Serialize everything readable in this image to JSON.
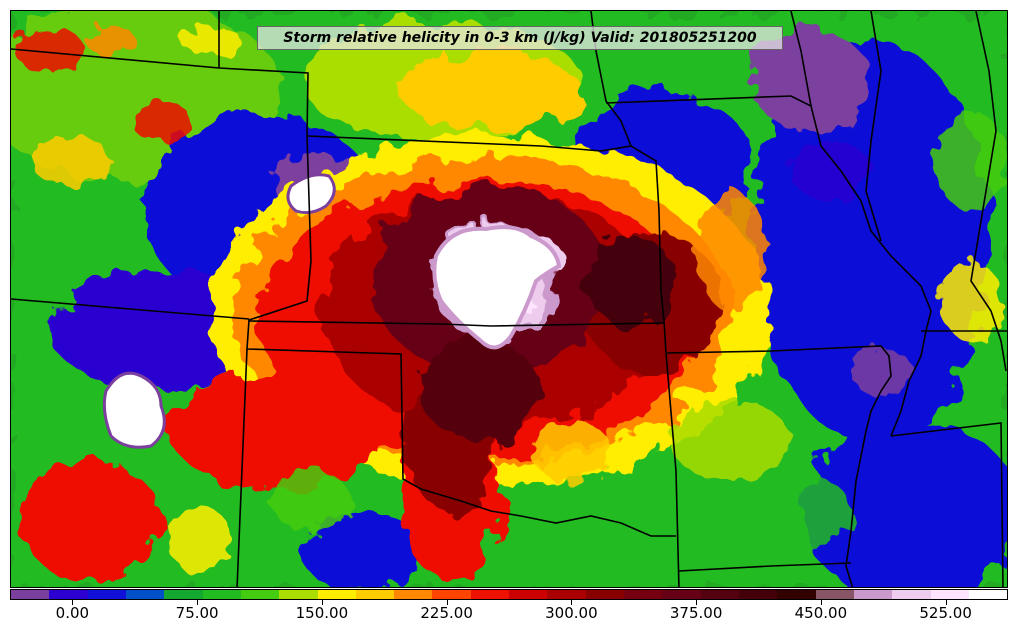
{
  "title": "Storm relative helicity in 0-3 km (J/kg) Valid: 201805251200",
  "colorbar": {
    "colors": [
      "#7b3f9e",
      "#2b00d0",
      "#1010d8",
      "#0050c8",
      "#14a830",
      "#22bb22",
      "#44cc11",
      "#aadd00",
      "#ffee00",
      "#ffcc00",
      "#ff8800",
      "#ff4400",
      "#ee1100",
      "#cc0000",
      "#aa0000",
      "#880000",
      "#770010",
      "#660014",
      "#55000e",
      "#440008",
      "#330000",
      "#885566",
      "#cc99cc",
      "#eeccee",
      "#ffe4ff",
      "#ffffff"
    ],
    "ticks": [
      "0.00",
      "75.00",
      "150.00",
      "225.00",
      "300.00",
      "375.00",
      "450.00",
      "525.00"
    ],
    "range": [
      -37.5,
      562.5
    ]
  }
}
